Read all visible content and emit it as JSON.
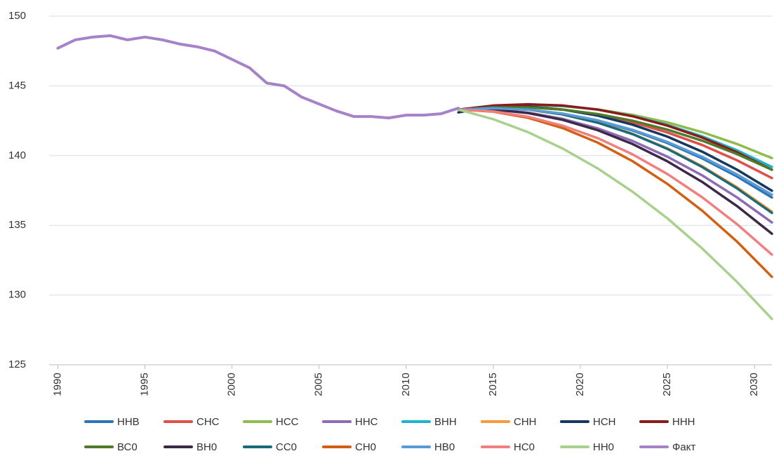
{
  "chart_data": {
    "type": "line",
    "xlim": [
      1989.5,
      2031
    ],
    "xticks": [
      1990,
      1995,
      2000,
      2005,
      2010,
      2015,
      2020,
      2025,
      2030
    ],
    "ylim": [
      125,
      150
    ],
    "yticks": [
      125,
      130,
      135,
      140,
      145,
      150
    ],
    "grid": true,
    "series": [
      {
        "name": "ННВ",
        "color": "#2e75b6",
        "x": [
          2013,
          2015,
          2017,
          2019,
          2021,
          2023,
          2025,
          2027,
          2029,
          2031
        ],
        "values": [
          143.3,
          143.4,
          143.3,
          143.0,
          142.5,
          141.8,
          140.9,
          139.8,
          138.5,
          137.0
        ]
      },
      {
        "name": "СНС",
        "color": "#e0504a",
        "x": [
          2013,
          2015,
          2017,
          2019,
          2021,
          2023,
          2025,
          2027,
          2029,
          2031
        ],
        "values": [
          143.3,
          143.48,
          143.48,
          143.3,
          142.94,
          142.39,
          141.66,
          140.76,
          139.66,
          138.39
        ]
      },
      {
        "name": "НСС",
        "color": "#8fbc4f",
        "x": [
          2013,
          2015,
          2017,
          2019,
          2021,
          2023,
          2025,
          2027,
          2029,
          2031
        ],
        "values": [
          143.3,
          143.53,
          143.61,
          143.54,
          143.31,
          142.92,
          142.38,
          141.68,
          140.83,
          139.82
        ]
      },
      {
        "name": "ННС",
        "color": "#8e6bb5",
        "x": [
          2013,
          2015,
          2017,
          2019,
          2021,
          2023,
          2025,
          2027,
          2029,
          2031
        ],
        "values": [
          143.3,
          143.3,
          143.08,
          142.63,
          141.95,
          141.05,
          139.92,
          138.58,
          137.0,
          135.21
        ]
      },
      {
        "name": "ВНН",
        "color": "#1fb5c9",
        "x": [
          2013,
          2015,
          2017,
          2019,
          2021,
          2023,
          2025,
          2027,
          2029,
          2031
        ],
        "values": [
          143.3,
          143.57,
          143.66,
          143.57,
          143.3,
          142.84,
          142.2,
          141.38,
          140.38,
          139.19
        ]
      },
      {
        "name": "СНН",
        "color": "#f79a3e",
        "x": [
          2013,
          2015,
          2017,
          2019,
          2021,
          2023,
          2025,
          2027,
          2029,
          2031
        ],
        "values": [
          143.3,
          143.42,
          143.3,
          142.95,
          142.37,
          141.56,
          140.52,
          139.24,
          137.73,
          135.99
        ]
      },
      {
        "name": "НСН",
        "color": "#17375e",
        "x": [
          2013,
          2015,
          2017,
          2019,
          2021,
          2023,
          2025,
          2027,
          2029,
          2031
        ],
        "values": [
          143.1,
          143.51,
          143.51,
          143.3,
          142.87,
          142.22,
          141.36,
          140.28,
          138.99,
          137.48
        ]
      },
      {
        "name": "ННН",
        "color": "#8b1a1a",
        "x": [
          2013,
          2015,
          2017,
          2019,
          2021,
          2023,
          2025,
          2027,
          2029,
          2031
        ],
        "values": [
          143.3,
          143.59,
          143.68,
          143.59,
          143.3,
          142.82,
          142.15,
          141.29,
          140.24,
          138.99
        ]
      },
      {
        "name": "ВС0",
        "color": "#4e7a2a",
        "x": [
          2013,
          2015,
          2017,
          2019,
          2021,
          2023,
          2025,
          2027,
          2029,
          2031
        ],
        "values": [
          143.3,
          143.46,
          143.46,
          143.3,
          142.98,
          142.5,
          141.86,
          141.07,
          140.11,
          138.99
        ]
      },
      {
        "name": "ВН0",
        "color": "#3d2848",
        "x": [
          2013,
          2015,
          2017,
          2019,
          2021,
          2023,
          2025,
          2027,
          2029,
          2031
        ],
        "values": [
          143.3,
          143.3,
          143.05,
          142.56,
          141.82,
          140.83,
          139.59,
          138.11,
          136.38,
          134.4
        ]
      },
      {
        "name": "СС0",
        "color": "#1a6b78",
        "x": [
          2013,
          2015,
          2017,
          2019,
          2021,
          2023,
          2025,
          2027,
          2029,
          2031
        ],
        "values": [
          143.3,
          143.42,
          143.3,
          142.95,
          142.36,
          141.54,
          140.48,
          139.18,
          137.65,
          135.89
        ]
      },
      {
        "name": "СН0",
        "color": "#d25f12",
        "x": [
          2013,
          2015,
          2017,
          2019,
          2021,
          2023,
          2025,
          2027,
          2029,
          2031
        ],
        "values": [
          143.3,
          143.15,
          142.71,
          141.97,
          140.93,
          139.6,
          137.97,
          136.05,
          133.83,
          131.31
        ]
      },
      {
        "name": "НВ0",
        "color": "#5b9bd5",
        "x": [
          2013,
          2015,
          2017,
          2019,
          2021,
          2023,
          2025,
          2027,
          2029,
          2031
        ],
        "values": [
          143.3,
          143.4,
          143.3,
          143.01,
          142.53,
          141.85,
          140.98,
          139.91,
          138.65,
          137.2
        ]
      },
      {
        "name": "НС0",
        "color": "#f08080",
        "x": [
          2013,
          2015,
          2017,
          2019,
          2021,
          2023,
          2025,
          2027,
          2029,
          2031
        ],
        "values": [
          143.3,
          143.17,
          142.79,
          142.14,
          141.25,
          140.09,
          138.68,
          137.01,
          135.08,
          132.9
        ]
      },
      {
        "name": "НН0",
        "color": "#a9d18e",
        "x": [
          2013,
          2015,
          2017,
          2019,
          2021,
          2023,
          2025,
          2027,
          2029,
          2031
        ],
        "values": [
          143.3,
          142.61,
          141.68,
          140.5,
          139.08,
          137.41,
          135.5,
          133.34,
          130.94,
          128.29
        ]
      },
      {
        "name": "Факт",
        "color": "#a682c9",
        "x": [
          1990,
          1991,
          1992,
          1993,
          1994,
          1995,
          1996,
          1997,
          1998,
          1999,
          2000,
          2001,
          2002,
          2003,
          2004,
          2005,
          2006,
          2007,
          2008,
          2009,
          2010,
          2011,
          2012,
          2013
        ],
        "values": [
          147.7,
          148.3,
          148.5,
          148.6,
          148.3,
          148.5,
          148.3,
          148.0,
          147.8,
          147.5,
          146.9,
          146.3,
          145.2,
          145.0,
          144.2,
          143.7,
          143.2,
          142.8,
          142.8,
          142.7,
          142.9,
          142.9,
          143.0,
          143.4
        ]
      }
    ]
  }
}
